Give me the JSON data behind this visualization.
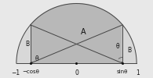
{
  "background_color": "#e8e8e8",
  "semicircle_color": "#ffffff",
  "region_A_color": "#b8b8b8",
  "region_B_color": "#d8d8d8",
  "theta_deg": 40,
  "line_color": "#444444",
  "dot_color": "#111111",
  "text_color": "#111111",
  "label_A": "A",
  "label_B": "B",
  "label_theta": "θ",
  "label_minus1": "−1",
  "label_1": "1",
  "label_0": "0",
  "label_neg_cos": "−cosθ",
  "label_sin": "sinθ",
  "figsize": [
    1.95,
    1.0
  ],
  "dpi": 100
}
